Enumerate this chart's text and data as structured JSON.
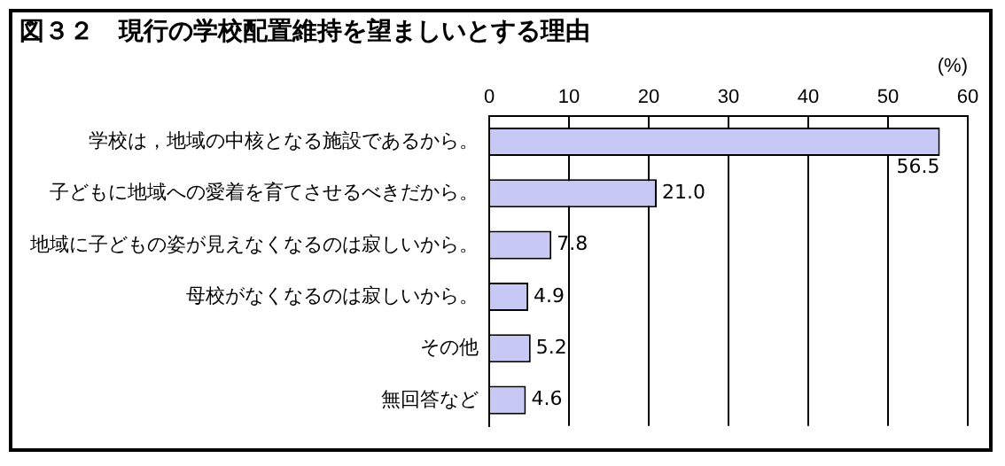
{
  "chart_data": {
    "type": "bar",
    "orientation": "horizontal",
    "title": "図３２　現行の学校配置維持を望ましいとする理由",
    "xlabel": "(%)",
    "categories": [
      "学校は，地域の中核となる施設であるから。",
      "子どもに地域への愛着を育てさせるべきだから。",
      "地域に子どもの姿が見えなくなるのは寂しいから。",
      "母校がなくなるのは寂しいから。",
      "その他",
      "無回答など"
    ],
    "values": [
      56.5,
      21.0,
      7.8,
      4.9,
      5.2,
      4.6
    ],
    "value_labels": [
      "56.5",
      "21.0",
      "7.8",
      "4.9",
      "5.2",
      "4.6"
    ],
    "color": "#c8c8f4",
    "xlim": [
      0,
      60
    ],
    "xticks": [
      0,
      10,
      20,
      30,
      40,
      50,
      60
    ],
    "grid": "x",
    "legend": false
  }
}
